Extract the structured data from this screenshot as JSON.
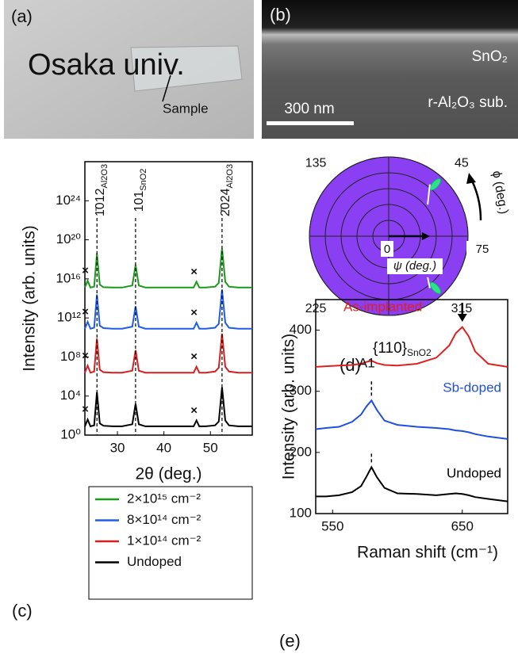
{
  "photos": {
    "a": {
      "label": "(a)",
      "text": "Osaka univ.",
      "sample": "Sample"
    },
    "b": {
      "label": "(b)",
      "layer": "SnO₂",
      "scale": "300 nm",
      "substrate": "r-Al₂O₃ sub."
    }
  },
  "chart_data": [
    {
      "type": "line",
      "panel": "(c)",
      "xlabel": "2θ (deg.)",
      "ylabel": "Intensity (arb. units)",
      "yscale": "log",
      "xlim": [
        23,
        59
      ],
      "xticks": [
        30,
        40,
        50
      ],
      "ylim": [
        1,
        1e+28
      ],
      "yticks": [
        {
          "value": 1,
          "label": "10⁰"
        },
        {
          "value": 10000,
          "label": "10⁴"
        },
        {
          "value": 100000000.0,
          "label": "10⁸"
        },
        {
          "value": 1000000000000.0,
          "label": "10¹²"
        },
        {
          "value": 1e+16,
          "label": "10¹⁶"
        },
        {
          "value": 1e+20,
          "label": "10²⁰"
        },
        {
          "value": 1e+24,
          "label": "10²⁴"
        }
      ],
      "legend": "below",
      "peaks": [
        {
          "x": 25.6,
          "label": "1̄012",
          "sub": "Al2O3"
        },
        {
          "x": 33.9,
          "label": "101",
          "sub": "SnO2"
        },
        {
          "x": 52.5,
          "label": "2̄024",
          "sub": "Al2O3"
        }
      ],
      "marker": "×",
      "marker_x": [
        23.6,
        47
      ],
      "x": [
        23,
        23.6,
        24.2,
        25,
        25.6,
        26.2,
        27,
        29,
        31,
        33.2,
        33.9,
        34.6,
        36,
        39,
        42,
        45,
        46.4,
        47,
        47.6,
        49,
        51,
        51.8,
        52.5,
        53.2,
        54,
        56,
        59
      ],
      "series": [
        {
          "name": "2×10¹⁵ cm⁻²",
          "color": "#1a9a1a",
          "values": [
            1300000000000000.0,
            6400000000000000.0,
            1300000000000000.0,
            1600000000000000.0,
            4e+18,
            2600000000000000.0,
            1400000000000000.0,
            1300000000000000.0,
            1300000000000000.0,
            2100000000000000.0,
            2.6e+17,
            2100000000000000.0,
            1300000000000000.0,
            1300000000000000.0,
            1300000000000000.0,
            1300000000000000.0,
            1300000000000000.0,
            5100000000000000.0,
            1300000000000000.0,
            1300000000000000.0,
            1600000000000000.0,
            4000000000000000.0,
            1.3e+19,
            5100000000000000.0,
            1600000000000000.0,
            1300000000000000.0,
            1300000000000000.0
          ]
        },
        {
          "name": "8×10¹⁴ cm⁻²",
          "color": "#1f5de8",
          "values": [
            80000000000.0,
            400000000000.0,
            80000000000.0,
            100000000000.0,
            250000000000000.0,
            160000000000.0,
            90000000000.0,
            80000000000.0,
            80000000000.0,
            130000000000.0,
            16000000000000.0,
            130000000000.0,
            80000000000.0,
            80000000000.0,
            80000000000.0,
            80000000000.0,
            80000000000.0,
            320000000000.0,
            80000000000.0,
            80000000000.0,
            100000000000.0,
            250000000000.0,
            800000000000000.0,
            320000000000.0,
            100000000000.0,
            80000000000.0,
            80000000000.0
          ]
        },
        {
          "name": "1×10¹⁴ cm⁻²",
          "color": "#d42020",
          "values": [
            2500000.0,
            13000000.0,
            2500000.0,
            3200000.0,
            8000000000.0,
            5000000.0,
            2800000.0,
            2500000.0,
            2500000.0,
            4000000.0,
            500000000.0,
            4000000.0,
            2500000.0,
            2500000.0,
            2500000.0,
            2500000.0,
            2500000.0,
            10000000.0,
            2500000.0,
            2500000.0,
            3200000.0,
            8000000.0,
            25000000000.0,
            10000000.0,
            3200000.0,
            2500000.0,
            2500000.0
          ]
        },
        {
          "name": "Undoped",
          "color": "#000000",
          "values": [
            8,
            40,
            8,
            10,
            25000,
            16,
            9,
            8,
            8,
            13,
            1600,
            13,
            8,
            8,
            8,
            8,
            8,
            32,
            8,
            8,
            10,
            25,
            80000,
            32,
            10,
            8,
            8
          ]
        }
      ]
    },
    {
      "type": "polar",
      "panel": "(d)",
      "pole_label": "{110}",
      "pole_sub": "SnO2",
      "rlabel": "ψ (deg.)",
      "alabel": "ϕ (deg.)",
      "rlim": [
        0,
        75
      ],
      "rticks": [
        0,
        75
      ],
      "rgrid": [
        15,
        30,
        45,
        60,
        75
      ],
      "angle_grid": [
        0,
        90,
        180,
        270
      ],
      "angle_ticks": [
        45,
        135,
        225,
        315
      ],
      "color": "#8a3ff2",
      "point_color": "#2ee08a",
      "points": {
        "phi": [
          48,
          312
        ],
        "psi": [
          66,
          66
        ]
      }
    },
    {
      "type": "line",
      "panel": "(e)",
      "xlabel": "Raman shift (cm⁻¹)",
      "ylabel": "Intensity (arb. units)",
      "xlim": [
        537,
        685
      ],
      "xticks": [
        550,
        650
      ],
      "ylim": [
        100,
        450
      ],
      "yticks": [
        100,
        200,
        300,
        400
      ],
      "peaks": [
        {
          "x": 580,
          "label": "A1"
        }
      ],
      "x": [
        537,
        545,
        555,
        565,
        572,
        576,
        580,
        584,
        590,
        600,
        615,
        630,
        640,
        645,
        650,
        655,
        660,
        670,
        685
      ],
      "series": [
        {
          "name": "As-implanted",
          "color": "#e02020",
          "values": [
            340,
            341,
            342,
            343,
            345,
            348,
            350,
            346,
            343,
            342,
            345,
            355,
            375,
            395,
            405,
            390,
            365,
            345,
            340
          ]
        },
        {
          "name": "Sb-doped",
          "color": "#1f4fe0",
          "values": [
            238,
            240,
            242,
            250,
            262,
            275,
            285,
            270,
            252,
            245,
            242,
            240,
            238,
            236,
            235,
            233,
            230,
            226,
            222
          ]
        },
        {
          "name": "Undoped",
          "color": "#000000",
          "values": [
            128,
            128,
            130,
            135,
            145,
            160,
            176,
            160,
            142,
            133,
            132,
            130,
            132,
            133,
            132,
            130,
            127,
            124,
            120
          ]
        }
      ]
    }
  ]
}
